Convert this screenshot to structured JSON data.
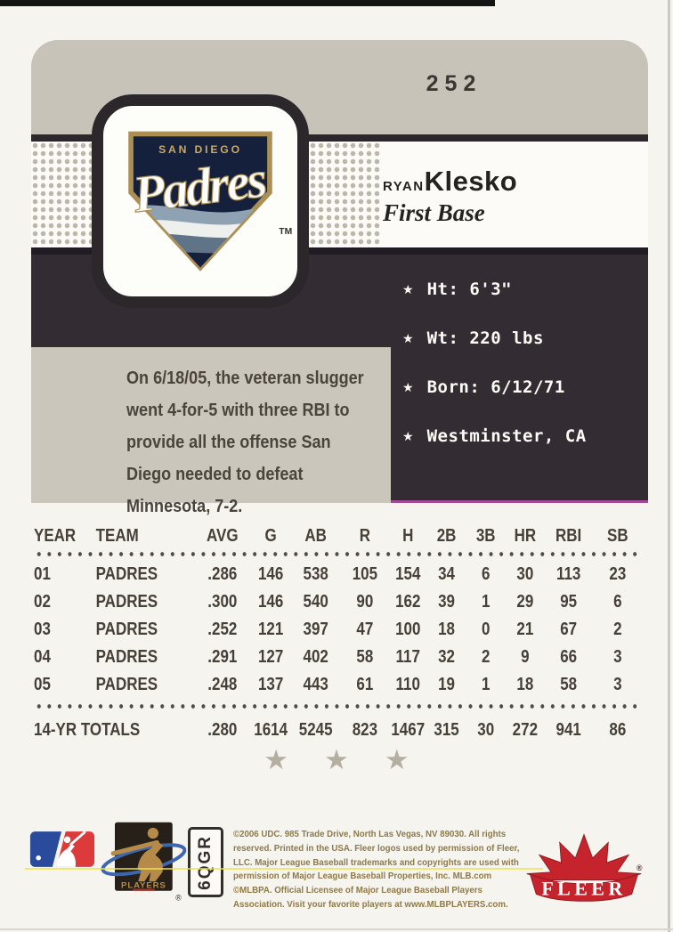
{
  "card": {
    "number": "252",
    "player": {
      "first_name": "RYAN",
      "last_name": "Klesko",
      "position": "First Base"
    },
    "team_logo": {
      "city": "SAN DIEGO",
      "name": "Padres",
      "tm": "TM"
    },
    "bio": {
      "star": "★",
      "items": [
        "Ht: 6'3\"",
        "Wt: 220 lbs",
        "Born: 6/12/71",
        "Westminster, CA"
      ]
    },
    "highlight": "On 6/18/05, the veteran slugger went 4-for-5 with three RBI to provide all the offense San Diego needed to defeat Minnesota, 7-2.",
    "stats": {
      "columns": [
        "YEAR",
        "TEAM",
        "AVG",
        "G",
        "AB",
        "R",
        "H",
        "2B",
        "3B",
        "HR",
        "RBI",
        "SB"
      ],
      "rows": [
        [
          "01",
          "PADRES",
          ".286",
          "146",
          "538",
          "105",
          "154",
          "34",
          "6",
          "30",
          "113",
          "23"
        ],
        [
          "02",
          "PADRES",
          ".300",
          "146",
          "540",
          "90",
          "162",
          "39",
          "1",
          "29",
          "95",
          "6"
        ],
        [
          "03",
          "PADRES",
          ".252",
          "121",
          "397",
          "47",
          "100",
          "18",
          "0",
          "21",
          "67",
          "2"
        ],
        [
          "04",
          "PADRES",
          ".291",
          "127",
          "402",
          "58",
          "117",
          "32",
          "2",
          "9",
          "66",
          "3"
        ],
        [
          "05",
          "PADRES",
          ".248",
          "137",
          "443",
          "61",
          "110",
          "19",
          "1",
          "18",
          "58",
          "3"
        ]
      ],
      "totals": {
        "label": "14-YR TOTALS",
        "values": [
          ".280",
          "1614",
          "5245",
          "823",
          "1467",
          "315",
          "30",
          "272",
          "941",
          "86"
        ]
      }
    },
    "stars": {
      "count": 3,
      "glyph": "★"
    },
    "footer": {
      "legal": "©2006 UDC. 985 Trade Drive, North Las Vegas, NV 89030. All rights reserved. Printed in the USA. Fleer logos used by permission of Fleer, LLC. Major League Baseball trademarks and copyrights are used with permission of Major League Baseball Properties, Inc. MLB.com ©MLBPA. Official Licensee of Major League Baseball Players Association. Visit your favorite players at www.MLBPLAYERS.com.",
      "code": "6QGR",
      "fleer_label": "FLEER",
      "players_label": "PLAYERS",
      "registered": "®"
    },
    "colors": {
      "navy": "#332d33",
      "gray": "#c8c3b9",
      "fleer_red": "#c5242c",
      "gold": "#b68b49"
    }
  }
}
